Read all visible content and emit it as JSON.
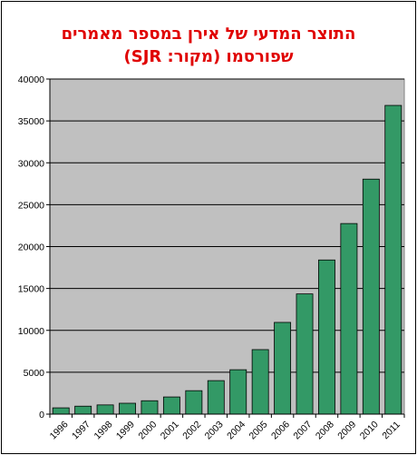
{
  "chart_data": {
    "type": "bar",
    "title": "התוצר המדעי של אירן במספר מאמרים",
    "subtitle": "שפורסמו (מקור: SJR)",
    "categories": [
      "1996",
      "1997",
      "1998",
      "1999",
      "2000",
      "2001",
      "2002",
      "2003",
      "2004",
      "2005",
      "2006",
      "2007",
      "2008",
      "2009",
      "2010",
      "2011"
    ],
    "values": [
      750,
      950,
      1100,
      1300,
      1600,
      2050,
      2800,
      4000,
      5300,
      7700,
      10950,
      14350,
      18400,
      22750,
      28050,
      36850
    ],
    "ylim": [
      0,
      40000
    ],
    "yticks": [
      "0",
      "5000",
      "10000",
      "15000",
      "20000",
      "25000",
      "30000",
      "35000",
      "40000"
    ],
    "xlabel": "",
    "ylabel": "",
    "grid": true,
    "colors": {
      "bar": "#339966",
      "plot_background": "#c0c0c0",
      "title": "#e00000"
    }
  }
}
